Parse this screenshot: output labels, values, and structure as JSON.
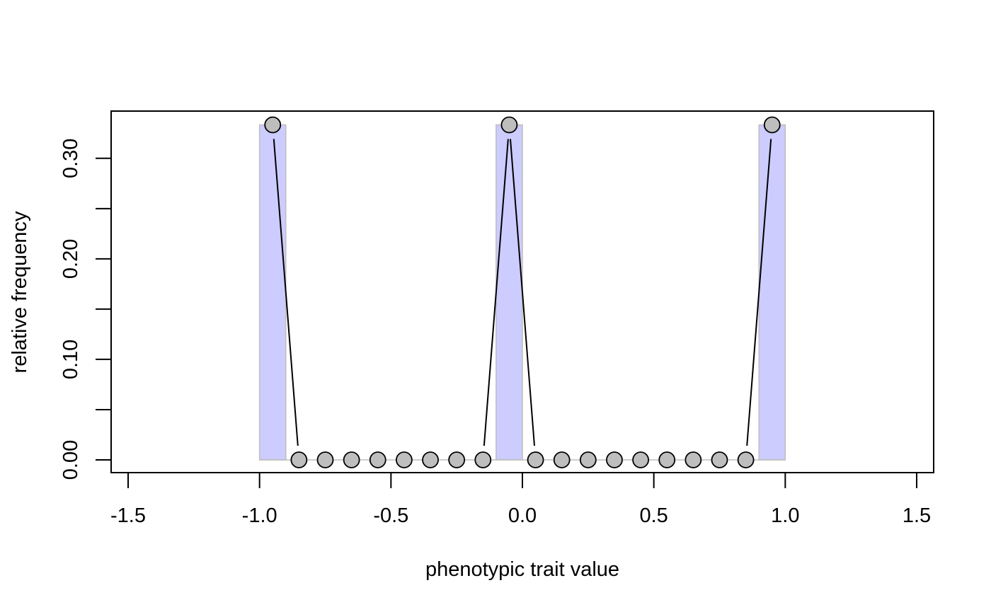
{
  "chart_data": {
    "type": "bar",
    "xlabel": "phenotypic trait value",
    "ylabel": "relative frequency",
    "xlim": [
      -1.5,
      1.5
    ],
    "ylim": [
      0,
      0.3333
    ],
    "x_ticks": [
      "-1.5",
      "-1.0",
      "-0.5",
      "0.0",
      "0.5",
      "1.0",
      "1.5"
    ],
    "y_ticks": [
      "0.00",
      "0.10",
      "0.20",
      "0.30"
    ],
    "bin_width": 0.1,
    "bins": [
      {
        "start": -1.0,
        "end": -0.9,
        "value": 0.3333
      },
      {
        "start": -0.1,
        "end": 0.0,
        "value": 0.3333
      },
      {
        "start": 0.9,
        "end": 1.0,
        "value": 0.3333
      }
    ],
    "points": {
      "x": [
        -0.95,
        -0.85,
        -0.75,
        -0.65,
        -0.55,
        -0.45,
        -0.35,
        -0.25,
        -0.15,
        -0.05,
        0.05,
        0.15,
        0.25,
        0.35,
        0.45,
        0.55,
        0.65,
        0.75,
        0.85,
        0.95
      ],
      "y": [
        0.3333,
        0,
        0,
        0,
        0,
        0,
        0,
        0,
        0,
        0.3333,
        0,
        0,
        0,
        0,
        0,
        0,
        0,
        0,
        0,
        0.3333
      ]
    },
    "grid": false,
    "colors": {
      "bar_fill": "#ccccff",
      "bar_stroke": "#bebebe",
      "point_fill": "#bebebe",
      "point_stroke": "#000000",
      "line": "#000000"
    }
  }
}
